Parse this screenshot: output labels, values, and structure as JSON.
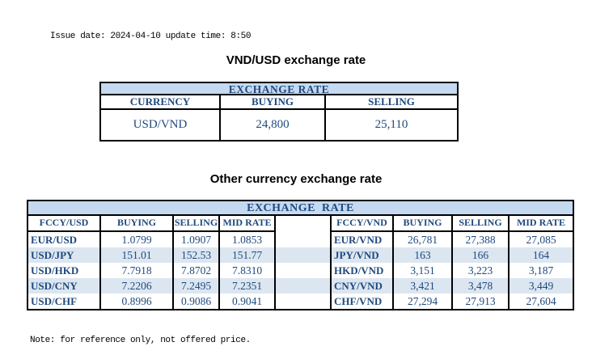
{
  "page": {
    "issue_line": "Issue date: 2024-04-10 update time: 8:50",
    "note_line": "Note: for reference only, not offered price."
  },
  "vnd_usd": {
    "title": "VND/USD exchange rate",
    "banner": "EXCHANGE RATE",
    "headers": [
      "CURRENCY",
      "BUYING",
      "SELLING"
    ],
    "row": {
      "currency": "USD/VND",
      "buying": "24,800",
      "selling": "25,110"
    }
  },
  "other": {
    "title": "Other currency exchange rate",
    "banner": "EXCHANGE  RATE",
    "left_headers": [
      "FCCY/USD",
      "BUYING",
      "SELLING",
      "MID RATE"
    ],
    "right_headers": [
      "FCCY/VND",
      "BUYING",
      "SELLING",
      "MID RATE"
    ],
    "rows": [
      {
        "l_pair": "EUR/USD",
        "l_buy": "1.0799",
        "l_sell": "1.0907",
        "l_mid": "1.0853",
        "r_pair": "EUR/VND",
        "r_buy": "26,781",
        "r_sell": "27,388",
        "r_mid": "27,085"
      },
      {
        "l_pair": "USD/JPY",
        "l_buy": "151.01",
        "l_sell": "152.53",
        "l_mid": "151.77",
        "r_pair": "JPY/VND",
        "r_buy": "163",
        "r_sell": "166",
        "r_mid": "164"
      },
      {
        "l_pair": "USD/HKD",
        "l_buy": "7.7918",
        "l_sell": "7.8702",
        "l_mid": "7.8310",
        "r_pair": "HKD/VND",
        "r_buy": "3,151",
        "r_sell": "3,223",
        "r_mid": "3,187"
      },
      {
        "l_pair": "USD/CNY",
        "l_buy": "7.2206",
        "l_sell": "7.2495",
        "l_mid": "7.2351",
        "r_pair": "CNY/VND",
        "r_buy": "3,421",
        "r_sell": "3,478",
        "r_mid": "3,449"
      },
      {
        "l_pair": "USD/CHF",
        "l_buy": "0.8996",
        "l_sell": "0.9086",
        "l_mid": "0.9041",
        "r_pair": "CHF/VND",
        "r_buy": "27,294",
        "r_sell": "27,913",
        "r_mid": "27,604"
      }
    ]
  },
  "colors": {
    "text_navy": "#1F497D",
    "banner_bg": "#C5D9F1",
    "stripe_bg": "#DCE6F1",
    "border": "#000000"
  }
}
